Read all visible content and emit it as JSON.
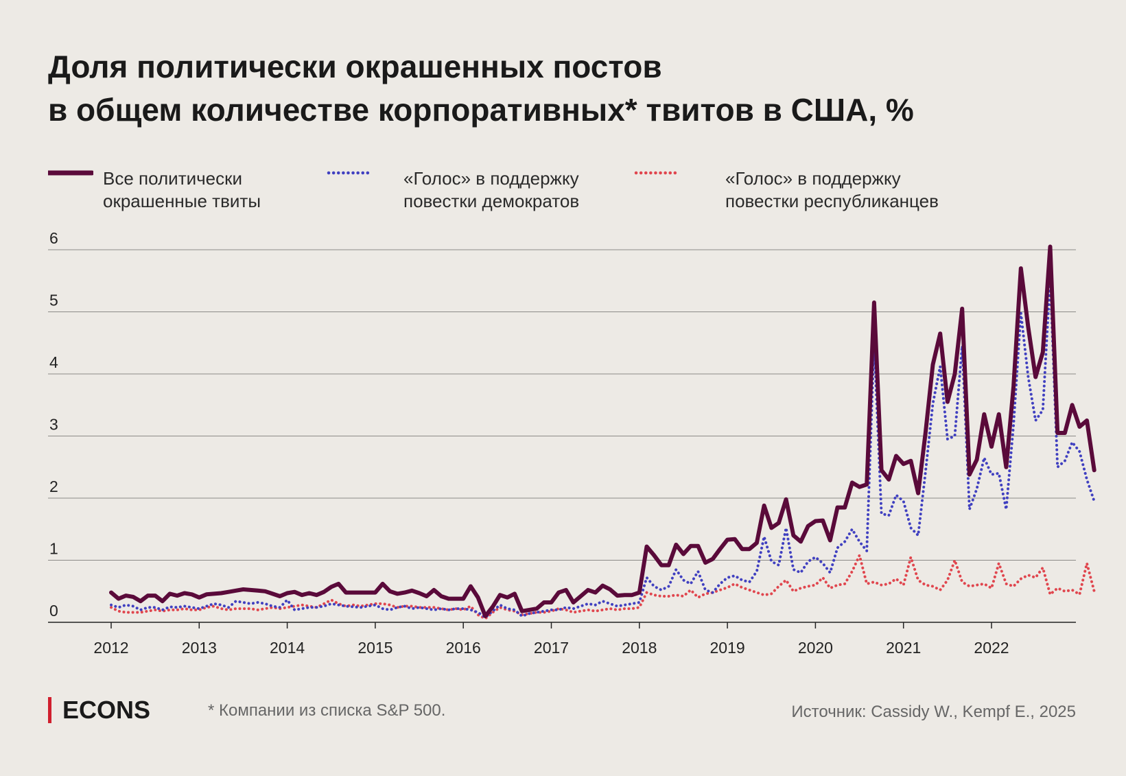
{
  "title": {
    "line1": "Доля политически окрашенных постов",
    "line2": "в общем количестве корпоративных* твитов в США, %"
  },
  "legend": [
    {
      "line1": "Все политически",
      "line2": "окрашенные твиты",
      "color": "#5a0a3a",
      "style": "solid"
    },
    {
      "line1": "«Голос» в поддержку",
      "line2": "повестки демократов",
      "color": "#4040c0",
      "style": "dotted"
    },
    {
      "line1": "«Голос» в поддержку",
      "line2": "повестки республиканцев",
      "color": "#e0464e",
      "style": "dotted"
    }
  ],
  "footer": {
    "logo": "ECONS",
    "logo_color": "#d01f2e",
    "footnote": "* Компании из списка S&P 500.",
    "source": "Источник: Cassidy W., Kempf E., 2025"
  },
  "chart_data": {
    "type": "line",
    "ylim": [
      0,
      6
    ],
    "yticks": [
      "0",
      "1",
      "2",
      "3",
      "4",
      "5",
      "6"
    ],
    "xticks": [
      "2012",
      "2013",
      "2014",
      "2015",
      "2016",
      "2017",
      "2018",
      "2019",
      "2020",
      "2021",
      "2022"
    ],
    "x_start": "2012-01",
    "x_end": "2022-12",
    "grid": true,
    "legend_position": "top",
    "series": [
      {
        "name": "Все политически окрашенные твиты",
        "color": "#5a0a3a",
        "values": [
          0.48,
          0.38,
          0.43,
          0.41,
          0.34,
          0.43,
          0.43,
          0.34,
          0.46,
          0.43,
          0.47,
          0.45,
          0.4,
          0.45,
          0.46,
          0.47,
          0.49,
          0.51,
          0.53,
          0.52,
          0.51,
          0.5,
          0.46,
          0.42,
          0.47,
          0.49,
          0.44,
          0.47,
          0.44,
          0.49,
          0.57,
          0.62,
          0.48,
          0.48,
          0.48,
          0.48,
          0.48,
          0.62,
          0.5,
          0.46,
          0.48,
          0.51,
          0.47,
          0.42,
          0.52,
          0.42,
          0.38,
          0.38,
          0.38,
          0.58,
          0.4,
          0.1,
          0.25,
          0.44,
          0.4,
          0.46,
          0.18,
          0.2,
          0.22,
          0.32,
          0.32,
          0.48,
          0.52,
          0.32,
          0.42,
          0.52,
          0.48,
          0.59,
          0.53,
          0.43,
          0.44,
          0.44,
          0.48,
          1.22,
          1.08,
          0.92,
          0.92,
          1.25,
          1.1,
          1.23,
          1.23,
          0.96,
          1.02,
          1.18,
          1.33,
          1.34,
          1.18,
          1.18,
          1.28,
          1.88,
          1.52,
          1.6,
          1.98,
          1.4,
          1.3,
          1.55,
          1.63,
          1.64,
          1.32,
          1.85,
          1.85,
          2.25,
          2.18,
          2.22,
          5.15,
          2.45,
          2.3,
          2.68,
          2.55,
          2.6,
          2.08,
          3.05,
          4.15,
          4.65,
          3.55,
          4.0,
          5.05,
          2.38,
          2.62,
          3.35,
          2.83,
          3.35,
          2.5,
          3.8,
          5.7,
          4.75,
          3.95,
          4.35,
          6.05,
          3.05,
          3.05,
          3.5,
          3.15,
          3.25,
          2.45
        ]
      },
      {
        "name": "«Голос» в поддержку повестки демократов",
        "color": "#4040c0",
        "values": [
          0.28,
          0.24,
          0.28,
          0.26,
          0.2,
          0.24,
          0.24,
          0.2,
          0.25,
          0.24,
          0.26,
          0.24,
          0.22,
          0.26,
          0.3,
          0.28,
          0.24,
          0.34,
          0.32,
          0.3,
          0.32,
          0.3,
          0.26,
          0.24,
          0.36,
          0.2,
          0.22,
          0.24,
          0.24,
          0.26,
          0.3,
          0.28,
          0.26,
          0.25,
          0.24,
          0.26,
          0.28,
          0.22,
          0.2,
          0.24,
          0.26,
          0.22,
          0.24,
          0.22,
          0.2,
          0.22,
          0.2,
          0.22,
          0.22,
          0.2,
          0.16,
          0.08,
          0.18,
          0.28,
          0.22,
          0.2,
          0.1,
          0.14,
          0.16,
          0.18,
          0.2,
          0.2,
          0.24,
          0.22,
          0.26,
          0.3,
          0.28,
          0.34,
          0.3,
          0.26,
          0.28,
          0.3,
          0.32,
          0.72,
          0.58,
          0.52,
          0.58,
          0.85,
          0.68,
          0.62,
          0.82,
          0.52,
          0.48,
          0.62,
          0.72,
          0.75,
          0.68,
          0.65,
          0.82,
          1.38,
          0.98,
          0.92,
          1.52,
          0.85,
          0.8,
          0.98,
          1.05,
          0.95,
          0.8,
          1.2,
          1.3,
          1.5,
          1.3,
          1.15,
          4.52,
          1.75,
          1.72,
          2.05,
          1.95,
          1.52,
          1.4,
          2.42,
          3.52,
          4.12,
          2.95,
          3.0,
          4.45,
          1.82,
          2.15,
          2.65,
          2.38,
          2.4,
          1.82,
          3.18,
          4.98,
          3.95,
          3.25,
          3.42,
          5.55,
          2.5,
          2.6,
          2.9,
          2.75,
          2.3,
          1.95
        ]
      },
      {
        "name": "«Голос» в поддержку повестки республиканцев",
        "color": "#e0464e",
        "values": [
          0.24,
          0.18,
          0.16,
          0.16,
          0.16,
          0.18,
          0.2,
          0.18,
          0.2,
          0.2,
          0.22,
          0.2,
          0.2,
          0.24,
          0.26,
          0.22,
          0.2,
          0.22,
          0.22,
          0.22,
          0.2,
          0.22,
          0.24,
          0.22,
          0.24,
          0.26,
          0.28,
          0.26,
          0.24,
          0.3,
          0.36,
          0.3,
          0.26,
          0.28,
          0.26,
          0.28,
          0.3,
          0.3,
          0.28,
          0.24,
          0.26,
          0.26,
          0.24,
          0.24,
          0.24,
          0.22,
          0.2,
          0.22,
          0.2,
          0.26,
          0.12,
          0.06,
          0.16,
          0.24,
          0.2,
          0.18,
          0.12,
          0.14,
          0.16,
          0.16,
          0.18,
          0.22,
          0.2,
          0.16,
          0.18,
          0.2,
          0.18,
          0.2,
          0.22,
          0.2,
          0.22,
          0.22,
          0.24,
          0.48,
          0.44,
          0.42,
          0.42,
          0.44,
          0.42,
          0.52,
          0.4,
          0.46,
          0.48,
          0.52,
          0.56,
          0.62,
          0.56,
          0.52,
          0.48,
          0.44,
          0.46,
          0.58,
          0.68,
          0.5,
          0.55,
          0.58,
          0.6,
          0.72,
          0.55,
          0.6,
          0.62,
          0.82,
          1.08,
          0.62,
          0.65,
          0.6,
          0.62,
          0.7,
          0.6,
          1.05,
          0.68,
          0.6,
          0.58,
          0.52,
          0.68,
          1.0,
          0.65,
          0.58,
          0.6,
          0.62,
          0.55,
          0.95,
          0.62,
          0.58,
          0.7,
          0.76,
          0.72,
          0.88,
          0.45,
          0.55,
          0.5,
          0.52,
          0.45,
          0.95,
          0.5
        ]
      }
    ]
  }
}
